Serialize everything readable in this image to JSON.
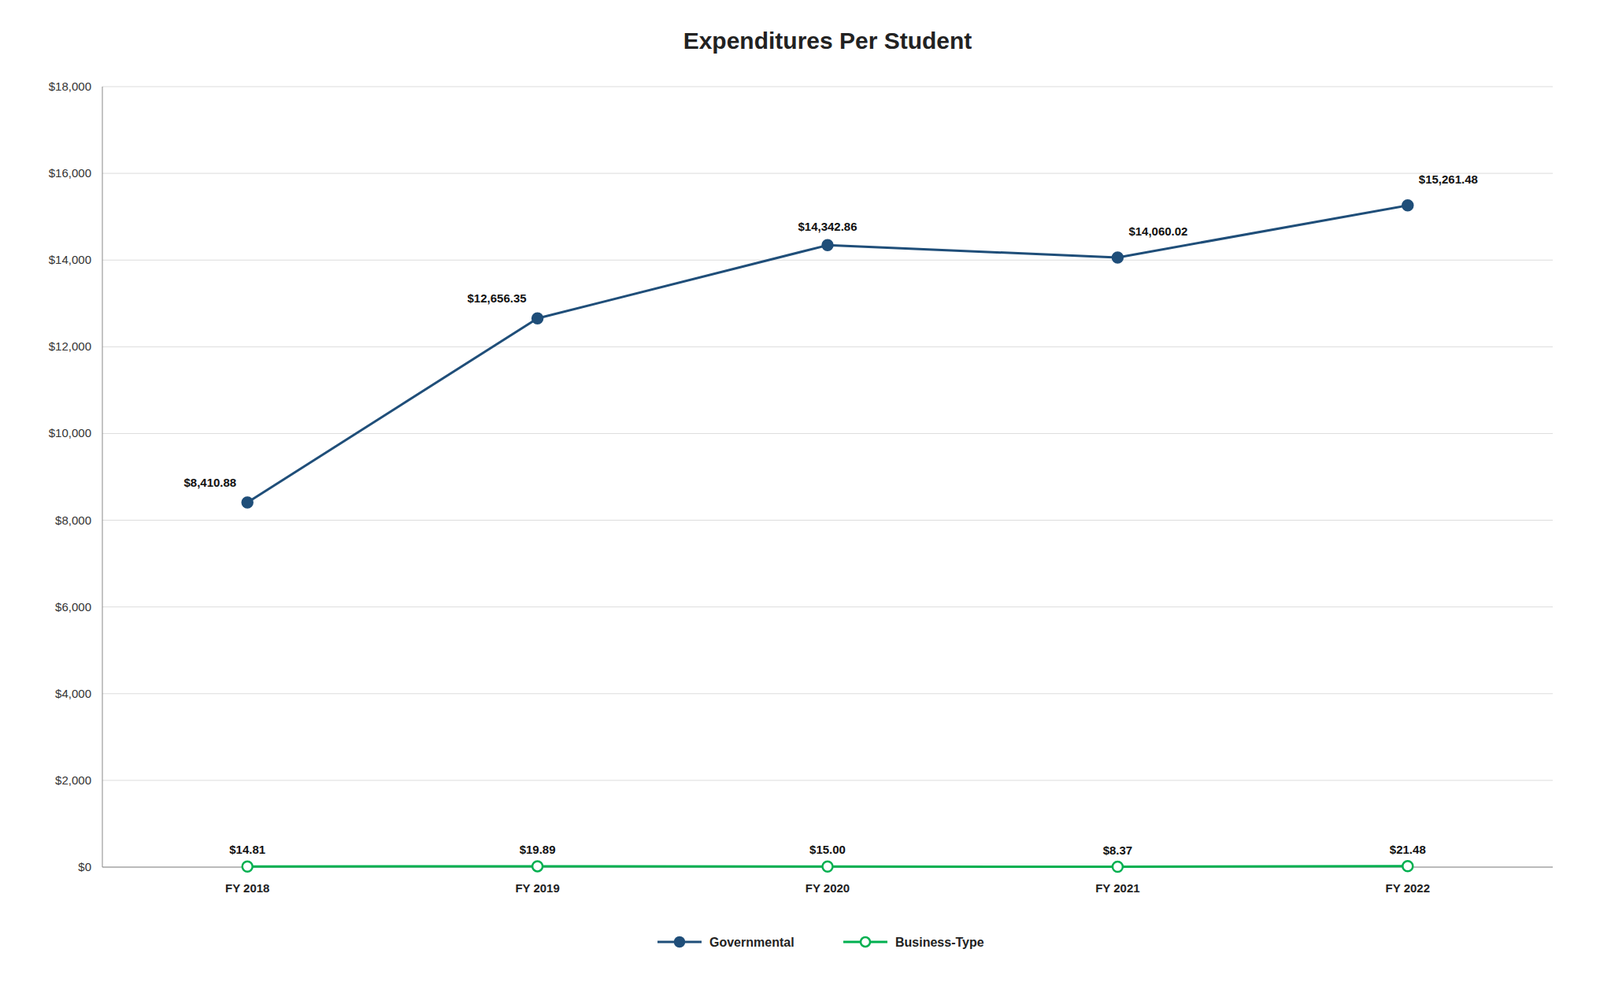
{
  "chart_data": {
    "type": "line",
    "title": "Expenditures Per Student",
    "categories": [
      "FY 2018",
      "FY 2019",
      "FY 2020",
      "FY 2021",
      "FY 2022"
    ],
    "series": [
      {
        "name": "Governmental",
        "color": "#1F4E79",
        "marker": "circle",
        "values": [
          8410.88,
          12656.35,
          14342.86,
          14060.02,
          15261.48
        ],
        "value_labels": [
          "$8,410.88",
          "$12,656.35",
          "$14,342.86",
          "$14,060.02",
          "$15,261.48"
        ]
      },
      {
        "name": "Business-Type",
        "color": "#00B050",
        "marker": "circle",
        "values": [
          14.81,
          19.89,
          15.0,
          8.37,
          21.48
        ],
        "value_labels": [
          "$14.81",
          "$19.89",
          "$15.00",
          "$8.37",
          "$21.48"
        ]
      }
    ],
    "ylim": [
      0,
      18000
    ],
    "yticks": [
      {
        "value": 0,
        "label": "$0"
      },
      {
        "value": 2000,
        "label": "$2,000"
      },
      {
        "value": 4000,
        "label": "$4,000"
      },
      {
        "value": 6000,
        "label": "$6,000"
      },
      {
        "value": 8000,
        "label": "$8,000"
      },
      {
        "value": 10000,
        "label": "$10,000"
      },
      {
        "value": 12000,
        "label": "$12,000"
      },
      {
        "value": 14000,
        "label": "$14,000"
      },
      {
        "value": 16000,
        "label": "$16,000"
      },
      {
        "value": 18000,
        "label": "$18,000"
      }
    ],
    "grid": true,
    "legend": "bottom",
    "data_labels": true
  }
}
